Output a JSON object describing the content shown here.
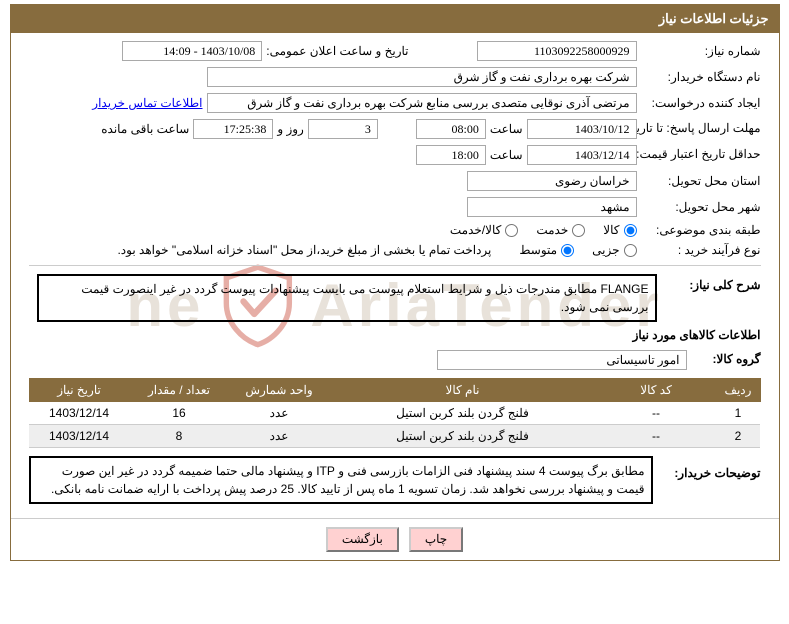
{
  "title": "جزئیات اطلاعات نیاز",
  "need_number_label": "شماره نیاز:",
  "need_number": "1103092258000929",
  "announce_label": "تاریخ و ساعت اعلان عمومی:",
  "announce_value": "1403/10/08 - 14:09",
  "buyer_org_label": "نام دستگاه خریدار:",
  "buyer_org": "شرکت بهره برداری نفت و گاز شرق",
  "requester_label": "ایجاد کننده درخواست:",
  "requester": "مرتضی آذری نوقایی متصدی بررسی منابع شرکت بهره برداری نفت و گاز شرق",
  "contact_link": "اطلاعات تماس خریدار",
  "reply_deadline_label": "مهلت ارسال پاسخ: تا تاریخ:",
  "reply_date": "1403/10/12",
  "time_label": "ساعت",
  "reply_time": "08:00",
  "days_remaining": "3",
  "days_suffix": "روز و",
  "time_remaining": "17:25:38",
  "time_suffix": "ساعت باقی مانده",
  "validity_label": "حداقل تاریخ اعتبار قیمت: تا تاریخ:",
  "validity_date": "1403/12/14",
  "validity_time": "18:00",
  "province_label": "استان محل تحویل:",
  "province": "خراسان رضوی",
  "city_label": "شهر محل تحویل:",
  "city": "مشهد",
  "category_label": "طبقه بندی موضوعی:",
  "radio_kala": "کالا",
  "radio_khadamat": "خدمت",
  "radio_kalakh": "کالا/خدمت",
  "process_label": "نوع فرآیند خرید :",
  "radio_jozi": "جزیی",
  "radio_motavaset": "متوسط",
  "process_note": "پرداخت تمام یا بخشی از مبلغ خرید،از محل \"اسناد خزانه اسلامی\" خواهد بود.",
  "general_desc_label": "شرح کلی نیاز:",
  "general_desc": "FLANGE مطابق مندرجات ذیل و شرایط استعلام پیوست می بایست پیشنهادات پیوست گردد در غیر اینصورت قیمت بررسی نمی شود.",
  "items_header": "اطلاعات کالاهای مورد نیاز",
  "group_label": "گروه کالا:",
  "group_value": "امور تاسیساتی",
  "cols": {
    "row": "ردیف",
    "code": "کد کالا",
    "name": "نام کالا",
    "unit": "واحد شمارش",
    "qty": "تعداد / مقدار",
    "date": "تاریخ نیاز"
  },
  "rows": [
    {
      "n": "1",
      "code": "--",
      "name": "فلنج گردن بلند کربن استیل",
      "unit": "عدد",
      "qty": "16",
      "date": "1403/12/14"
    },
    {
      "n": "2",
      "code": "--",
      "name": "فلنج گردن بلند کربن استیل",
      "unit": "عدد",
      "qty": "8",
      "date": "1403/12/14"
    }
  ],
  "buyer_exp_label": "توضیحات خریدار:",
  "buyer_exp": "مطابق برگ پیوست  4 سند پیشنهاد فنی الزامات بازرسی فنی و ITP و پیشنهاد مالی حتما ضمیمه گردد در غیر این صورت قیمت و پیشنهاد بررسی نخواهد شد. زمان تسویه 1 ماه پس از تایید کالا. 25 درصد پیش پرداخت با ارایه ضمانت نامه بانکی.",
  "btn_print": "چاپ",
  "btn_back": "بازگشت",
  "wm_text_1": "AriaTender",
  "wm_text_2": "ne",
  "colors": {
    "brand": "#876c3e",
    "link": "#0000ee",
    "btn_bg": "#ffd1d1",
    "wm": "#e8e2da",
    "wm_shield": "#c84b3a"
  }
}
